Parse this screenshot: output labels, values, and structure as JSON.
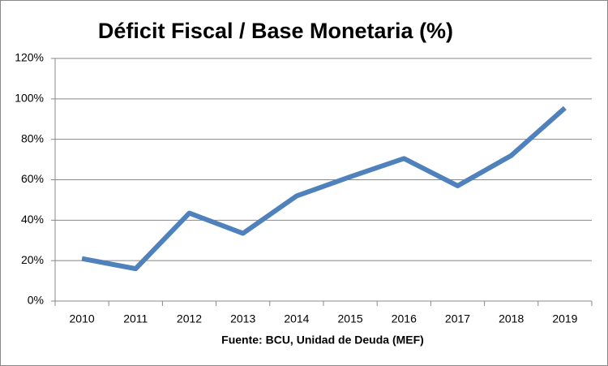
{
  "chart_data": {
    "type": "line",
    "title": "Déficit Fiscal / Base Monetaria (%)",
    "source": "Fuente: BCU, Unidad de Deuda (MEF)",
    "categories": [
      "2010",
      "2011",
      "2012",
      "2013",
      "2014",
      "2015",
      "2016",
      "2017",
      "2018",
      "2019"
    ],
    "series": [
      {
        "name": "Déficit Fiscal / Base Monetaria",
        "color": "#4f81bd",
        "values": [
          21,
          16,
          43.5,
          33.5,
          52,
          61.5,
          70.5,
          57,
          72,
          95.5
        ]
      }
    ],
    "ylim": [
      0,
      120
    ],
    "yticks": [
      {
        "value": 0,
        "label": "0%"
      },
      {
        "value": 20,
        "label": "20%"
      },
      {
        "value": 40,
        "label": "40%"
      },
      {
        "value": 60,
        "label": "60%"
      },
      {
        "value": 80,
        "label": "80%"
      },
      {
        "value": 100,
        "label": "100%"
      },
      {
        "value": 120,
        "label": "120%"
      }
    ],
    "grid": true
  }
}
